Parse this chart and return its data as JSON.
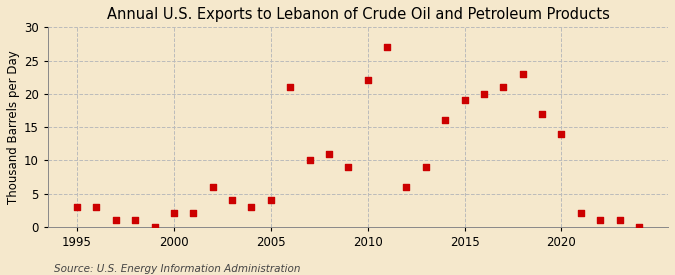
{
  "title": "Annual U.S. Exports to Lebanon of Crude Oil and Petroleum Products",
  "ylabel": "Thousand Barrels per Day",
  "source": "Source: U.S. Energy Information Administration",
  "background_color": "#f5e8cc",
  "plot_background_color": "#f5e8cc",
  "marker_color": "#cc0000",
  "marker_size": 18,
  "years": [
    1995,
    1996,
    1997,
    1998,
    1999,
    2000,
    2001,
    2002,
    2003,
    2004,
    2005,
    2006,
    2007,
    2008,
    2009,
    2010,
    2011,
    2012,
    2013,
    2014,
    2015,
    2016,
    2017,
    2018,
    2019,
    2020,
    2021,
    2022,
    2023,
    2024
  ],
  "values": [
    3,
    3,
    1,
    1,
    0,
    2,
    2,
    6,
    4,
    3,
    4,
    21,
    10,
    11,
    9,
    22,
    27,
    6,
    9,
    16,
    19,
    20,
    21,
    23,
    17,
    14,
    2,
    1,
    1,
    0
  ],
  "ylim": [
    0,
    30
  ],
  "xlim": [
    1993.5,
    2025.5
  ],
  "yticks": [
    0,
    5,
    10,
    15,
    20,
    25,
    30
  ],
  "xticks": [
    1995,
    2000,
    2005,
    2010,
    2015,
    2020
  ],
  "grid_color": "#bbbbbb",
  "title_fontsize": 10.5,
  "axis_fontsize": 8.5,
  "source_fontsize": 7.5
}
